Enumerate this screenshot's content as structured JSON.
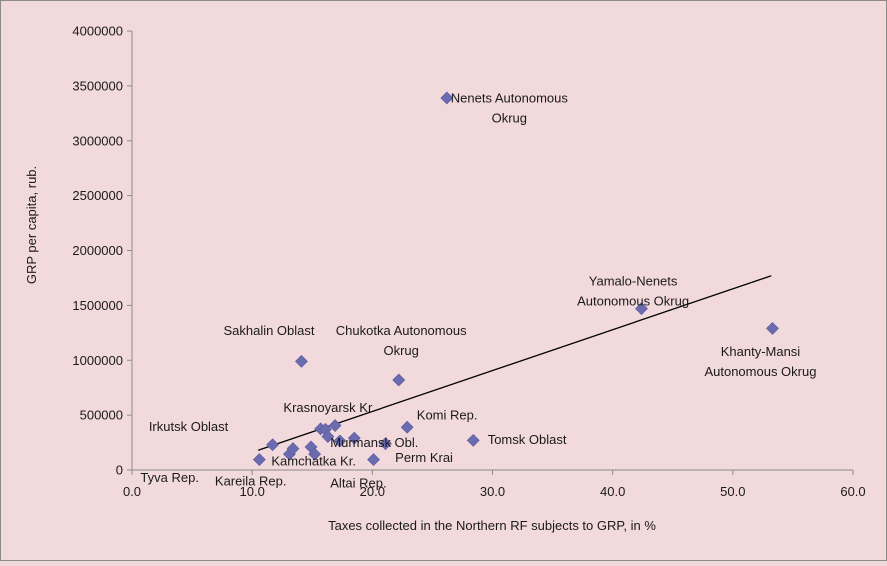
{
  "chart_data": {
    "type": "scatter",
    "title": "",
    "xlabel": "Taxes collected in the Northern RF subjects to GRP, in %",
    "ylabel": "GRP per capita, rub.",
    "xlim": [
      0,
      60
    ],
    "ylim": [
      0,
      4000000
    ],
    "x_ticks": [
      "0.0",
      "10.0",
      "20.0",
      "30.0",
      "40.0",
      "50.0",
      "60.0"
    ],
    "y_ticks": [
      "0",
      "500000",
      "1000000",
      "1500000",
      "2000000",
      "2500000",
      "3000000",
      "3500000",
      "4000000"
    ],
    "grid": false,
    "legend": false,
    "marker_color": "#6b6bb0",
    "trendline": {
      "type": "linear",
      "x": [
        10.5,
        53.2
      ],
      "y": [
        180000,
        1770000
      ],
      "color": "#000000"
    },
    "points": [
      {
        "x": 26.2,
        "y": 3390000
      },
      {
        "x": 42.4,
        "y": 1470000
      },
      {
        "x": 53.3,
        "y": 1290000
      },
      {
        "x": 14.1,
        "y": 990000
      },
      {
        "x": 22.2,
        "y": 820000
      },
      {
        "x": 22.9,
        "y": 390000
      },
      {
        "x": 28.4,
        "y": 270000
      },
      {
        "x": 11.7,
        "y": 230000
      },
      {
        "x": 10.6,
        "y": 95000
      },
      {
        "x": 13.1,
        "y": 145000
      },
      {
        "x": 13.4,
        "y": 195000
      },
      {
        "x": 14.9,
        "y": 210000
      },
      {
        "x": 15.2,
        "y": 145000
      },
      {
        "x": 15.7,
        "y": 375000
      },
      {
        "x": 16.1,
        "y": 370000
      },
      {
        "x": 16.3,
        "y": 305000
      },
      {
        "x": 16.9,
        "y": 405000
      },
      {
        "x": 17.3,
        "y": 265000
      },
      {
        "x": 18.5,
        "y": 290000
      },
      {
        "x": 20.1,
        "y": 95000
      },
      {
        "x": 21.1,
        "y": 240000
      }
    ],
    "annotations": [
      {
        "lines": [
          "Nenets Autonomous",
          "Okrug"
        ],
        "x": 31.4,
        "y": 3350000,
        "anchor": "middle"
      },
      {
        "lines": [
          "Yamalo-Nenets",
          "Autonomous Okrug"
        ],
        "x": 41.7,
        "y": 1680000,
        "anchor": "middle"
      },
      {
        "lines": [
          "Khanty-Mansi",
          "Autonomous Okrug"
        ],
        "x": 52.3,
        "y": 1040000,
        "anchor": "middle"
      },
      {
        "lines": [
          "Sakhalin Oblast"
        ],
        "x": 11.4,
        "y": 1230000,
        "anchor": "middle"
      },
      {
        "lines": [
          "Chukotka Autonomous",
          "Okrug"
        ],
        "x": 22.4,
        "y": 1230000,
        "anchor": "middle"
      },
      {
        "lines": [
          "Krasnoyarsk Kr."
        ],
        "x": 12.6,
        "y": 530000,
        "anchor": "start"
      },
      {
        "lines": [
          "Irkutsk Oblast"
        ],
        "x": 1.4,
        "y": 355000,
        "anchor": "start"
      },
      {
        "lines": [
          "Komi Rep."
        ],
        "x": 23.7,
        "y": 460000,
        "anchor": "start"
      },
      {
        "lines": [
          "Tomsk Oblast"
        ],
        "x": 29.6,
        "y": 235000,
        "anchor": "start"
      },
      {
        "lines": [
          "Murmansk Obl."
        ],
        "x": 16.5,
        "y": 210000,
        "anchor": "start"
      },
      {
        "lines": [
          "Perm Krai"
        ],
        "x": 21.9,
        "y": 75000,
        "anchor": "start"
      },
      {
        "lines": [
          "Kamchatka Kr."
        ],
        "x": 11.6,
        "y": 40000,
        "anchor": "start"
      },
      {
        "lines": [
          "Tyva Rep."
        ],
        "x": 0.7,
        "y": -110000,
        "anchor": "start"
      },
      {
        "lines": [
          "Kareila Rep."
        ],
        "x": 6.9,
        "y": -140000,
        "anchor": "start"
      },
      {
        "lines": [
          "Altai Rep."
        ],
        "x": 16.5,
        "y": -160000,
        "anchor": "start"
      }
    ]
  }
}
